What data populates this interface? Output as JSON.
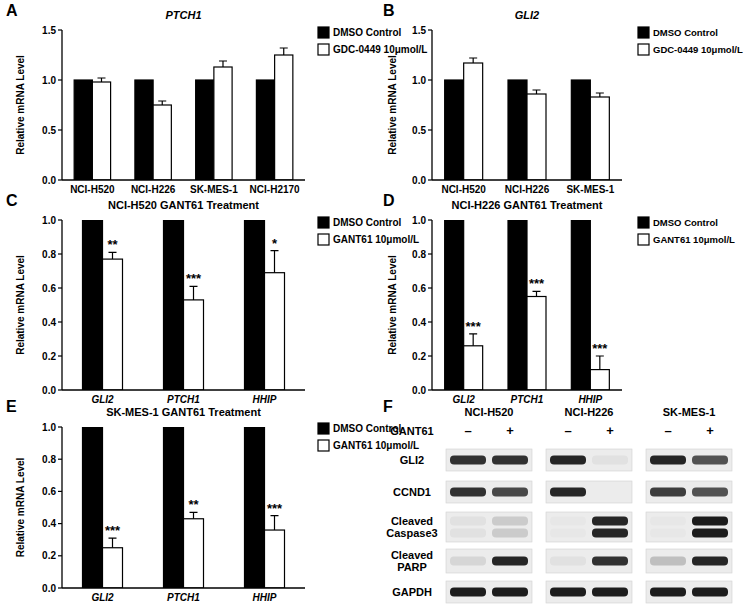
{
  "chart_data": [
    {
      "type": "bar",
      "panel_label": "A",
      "title": "PTCH1",
      "y_label": "Relative mRNA Level",
      "categories": [
        "NCI-H520",
        "NCI-H226",
        "SK-MES-1",
        "NCI-H2170"
      ],
      "series": [
        {
          "name": "DMSO Control",
          "color": "#000000",
          "values": [
            1,
            1,
            1,
            1
          ]
        },
        {
          "name": "GDC-0449 10μmol/L",
          "color": "#ffffff",
          "values": [
            0.98,
            0.75,
            1.13,
            1.25
          ],
          "errors": [
            0.04,
            0.04,
            0.06,
            0.07
          ]
        }
      ],
      "ylim": [
        0,
        1.5
      ],
      "yticks": [
        {
          "value": 0,
          "label": "0.0"
        },
        {
          "value": 0.5,
          "label": "0.5"
        },
        {
          "value": 1,
          "label": "1.0"
        },
        {
          "value": 1.5,
          "label": "1.5"
        }
      ],
      "legend": "right"
    },
    {
      "type": "bar",
      "panel_label": "B",
      "title": "GLI2",
      "y_label": "Relative mRNA Level",
      "categories": [
        "NCI-H520",
        "NCI-H226",
        "SK-MES-1"
      ],
      "series": [
        {
          "name": "DMSO Control",
          "color": "#000000",
          "values": [
            1,
            1,
            1
          ]
        },
        {
          "name": "GDC-0449 10μmol/L",
          "color": "#ffffff",
          "values": [
            1.17,
            0.86,
            0.83
          ],
          "errors": [
            0.05,
            0.04,
            0.04
          ]
        }
      ],
      "ylim": [
        0,
        1.5
      ],
      "yticks": [
        {
          "value": 0,
          "label": "0.0"
        },
        {
          "value": 0.5,
          "label": "0.5"
        },
        {
          "value": 1,
          "label": "1.0"
        },
        {
          "value": 1.5,
          "label": "1.5"
        }
      ],
      "legend": "right"
    },
    {
      "type": "bar",
      "panel_label": "C",
      "title": "NCI-H520 GANT61 Treatment",
      "y_label": "Relative mRNA Level",
      "categories": [
        "GLI2",
        "PTCH1",
        "HHIP"
      ],
      "series": [
        {
          "name": "DMSO Control",
          "color": "#000000",
          "values": [
            1,
            1,
            1
          ]
        },
        {
          "name": "GANT61 10μmol/L",
          "color": "#ffffff",
          "values": [
            0.77,
            0.53,
            0.69
          ],
          "errors": [
            0.04,
            0.08,
            0.13
          ],
          "significance": [
            "**",
            "***",
            "*"
          ]
        }
      ],
      "ylim": [
        0,
        1
      ],
      "yticks": [
        {
          "value": 0,
          "label": "0.0"
        },
        {
          "value": 0.2,
          "label": "0.2"
        },
        {
          "value": 0.4,
          "label": "0.4"
        },
        {
          "value": 0.6,
          "label": "0.6"
        },
        {
          "value": 0.8,
          "label": "0.8"
        },
        {
          "value": 1,
          "label": "1.0"
        }
      ],
      "legend": "right"
    },
    {
      "type": "bar",
      "panel_label": "D",
      "title": "NCI-H226 GANT61 Treatment",
      "y_label": "Relative mRNA Level",
      "categories": [
        "GLI2",
        "PTCH1",
        "HHIP"
      ],
      "series": [
        {
          "name": "DMSO Control",
          "color": "#000000",
          "values": [
            1,
            1,
            1
          ]
        },
        {
          "name": "GANT61 10μmol/L",
          "color": "#ffffff",
          "values": [
            0.26,
            0.55,
            0.12
          ],
          "errors": [
            0.07,
            0.03,
            0.08
          ],
          "significance": [
            "***",
            "***",
            "***"
          ]
        }
      ],
      "ylim": [
        0,
        1
      ],
      "yticks": [
        {
          "value": 0,
          "label": "0.0"
        },
        {
          "value": 0.2,
          "label": "0.2"
        },
        {
          "value": 0.4,
          "label": "0.4"
        },
        {
          "value": 0.6,
          "label": "0.6"
        },
        {
          "value": 0.8,
          "label": "0.8"
        },
        {
          "value": 1,
          "label": "1.0"
        }
      ],
      "legend": "right"
    },
    {
      "type": "bar",
      "panel_label": "E",
      "title": "SK-MES-1 GANT61 Treatment",
      "y_label": "Relative mRNA Level",
      "categories": [
        "GLI2",
        "PTCH1",
        "HHIP"
      ],
      "series": [
        {
          "name": "DMSO Control",
          "color": "#000000",
          "values": [
            1,
            1,
            1
          ]
        },
        {
          "name": "GANT61 10μmol/L",
          "color": "#ffffff",
          "values": [
            0.25,
            0.43,
            0.36
          ],
          "errors": [
            0.06,
            0.04,
            0.09
          ],
          "significance": [
            "***",
            "**",
            "***"
          ]
        }
      ],
      "ylim": [
        0,
        1
      ],
      "yticks": [
        {
          "value": 0,
          "label": "0.0"
        },
        {
          "value": 0.2,
          "label": "0.2"
        },
        {
          "value": 0.4,
          "label": "0.4"
        },
        {
          "value": 0.6,
          "label": "0.6"
        },
        {
          "value": 0.8,
          "label": "0.8"
        },
        {
          "value": 1,
          "label": "1.0"
        }
      ],
      "legend": "right"
    }
  ],
  "blot": {
    "panel_label": "F",
    "columns": [
      "NCI-H520",
      "NCI-H226",
      "SK-MES-1"
    ],
    "treatment": {
      "label": "GANT61",
      "lanes": [
        "–",
        "+",
        "–",
        "+",
        "–",
        "+"
      ]
    },
    "rows": [
      {
        "label": "GLI2",
        "bands": [
          [
            0.85
          ],
          [
            0.85
          ],
          [
            0.9
          ],
          [
            0.05
          ],
          [
            0.9
          ],
          [
            0.7
          ]
        ]
      },
      {
        "label": "CCND1",
        "bands": [
          [
            0.85
          ],
          [
            0.75
          ],
          [
            0.9
          ],
          [
            0.0
          ],
          [
            0.8
          ],
          [
            0.7
          ]
        ]
      },
      {
        "label": "Cleaved\nCaspase3",
        "bands": [
          [
            0.05,
            0.05
          ],
          [
            0.15,
            0.15
          ],
          [
            0.02,
            0.02
          ],
          [
            0.9,
            0.9
          ],
          [
            0.02,
            0.02
          ],
          [
            0.95,
            0.95
          ]
        ]
      },
      {
        "label": "Cleaved\nPARP",
        "bands": [
          [
            0.1
          ],
          [
            0.9
          ],
          [
            0.05
          ],
          [
            0.85
          ],
          [
            0.2
          ],
          [
            0.9
          ]
        ]
      },
      {
        "label": "GAPDH",
        "bands": [
          [
            0.95
          ],
          [
            0.95
          ],
          [
            0.95
          ],
          [
            0.95
          ],
          [
            0.95
          ],
          [
            0.95
          ]
        ]
      }
    ]
  }
}
